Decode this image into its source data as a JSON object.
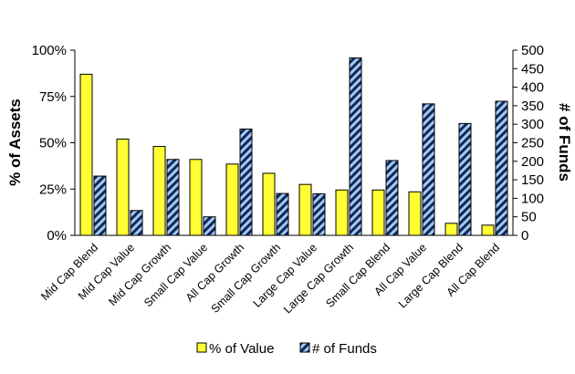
{
  "chart_data": {
    "type": "bar",
    "categories": [
      "Mid Cap Blend",
      "Mid Cap Value",
      "Mid Cap Growth",
      "Small Cap Value",
      "All Cap Growth",
      "Small Cap Growth",
      "Large Cap Value",
      "Large Cap Growth",
      "Small Cap Blend",
      "All Cap Value",
      "Large Cap Blend",
      "All Cap Blend"
    ],
    "series": [
      {
        "name": "% of Value",
        "axis": "left",
        "color": "#ffff33",
        "values": [
          87,
          52,
          48,
          41,
          38.5,
          33.5,
          27.5,
          24.5,
          24.5,
          23.5,
          6.5,
          5.5
        ]
      },
      {
        "name": "# of Funds",
        "axis": "right",
        "color": "#a6c8f0",
        "pattern": "diagonal-stripes",
        "stripe_color": "#0b2a5a",
        "values": [
          160,
          67,
          205,
          50,
          287,
          113,
          112,
          479,
          202,
          355,
          302,
          362
        ]
      }
    ],
    "ylabel": "% of Assets",
    "ylabel_right": "# of Funds",
    "ylim": [
      0,
      100
    ],
    "ylim_right": [
      0,
      500
    ],
    "yticks": [
      "0%",
      "25%",
      "50%",
      "75%",
      "100%"
    ],
    "yticks_right": [
      "0",
      "50",
      "100",
      "150",
      "200",
      "250",
      "300",
      "350",
      "400",
      "450",
      "500"
    ],
    "legend_position": "bottom",
    "grid": false
  }
}
